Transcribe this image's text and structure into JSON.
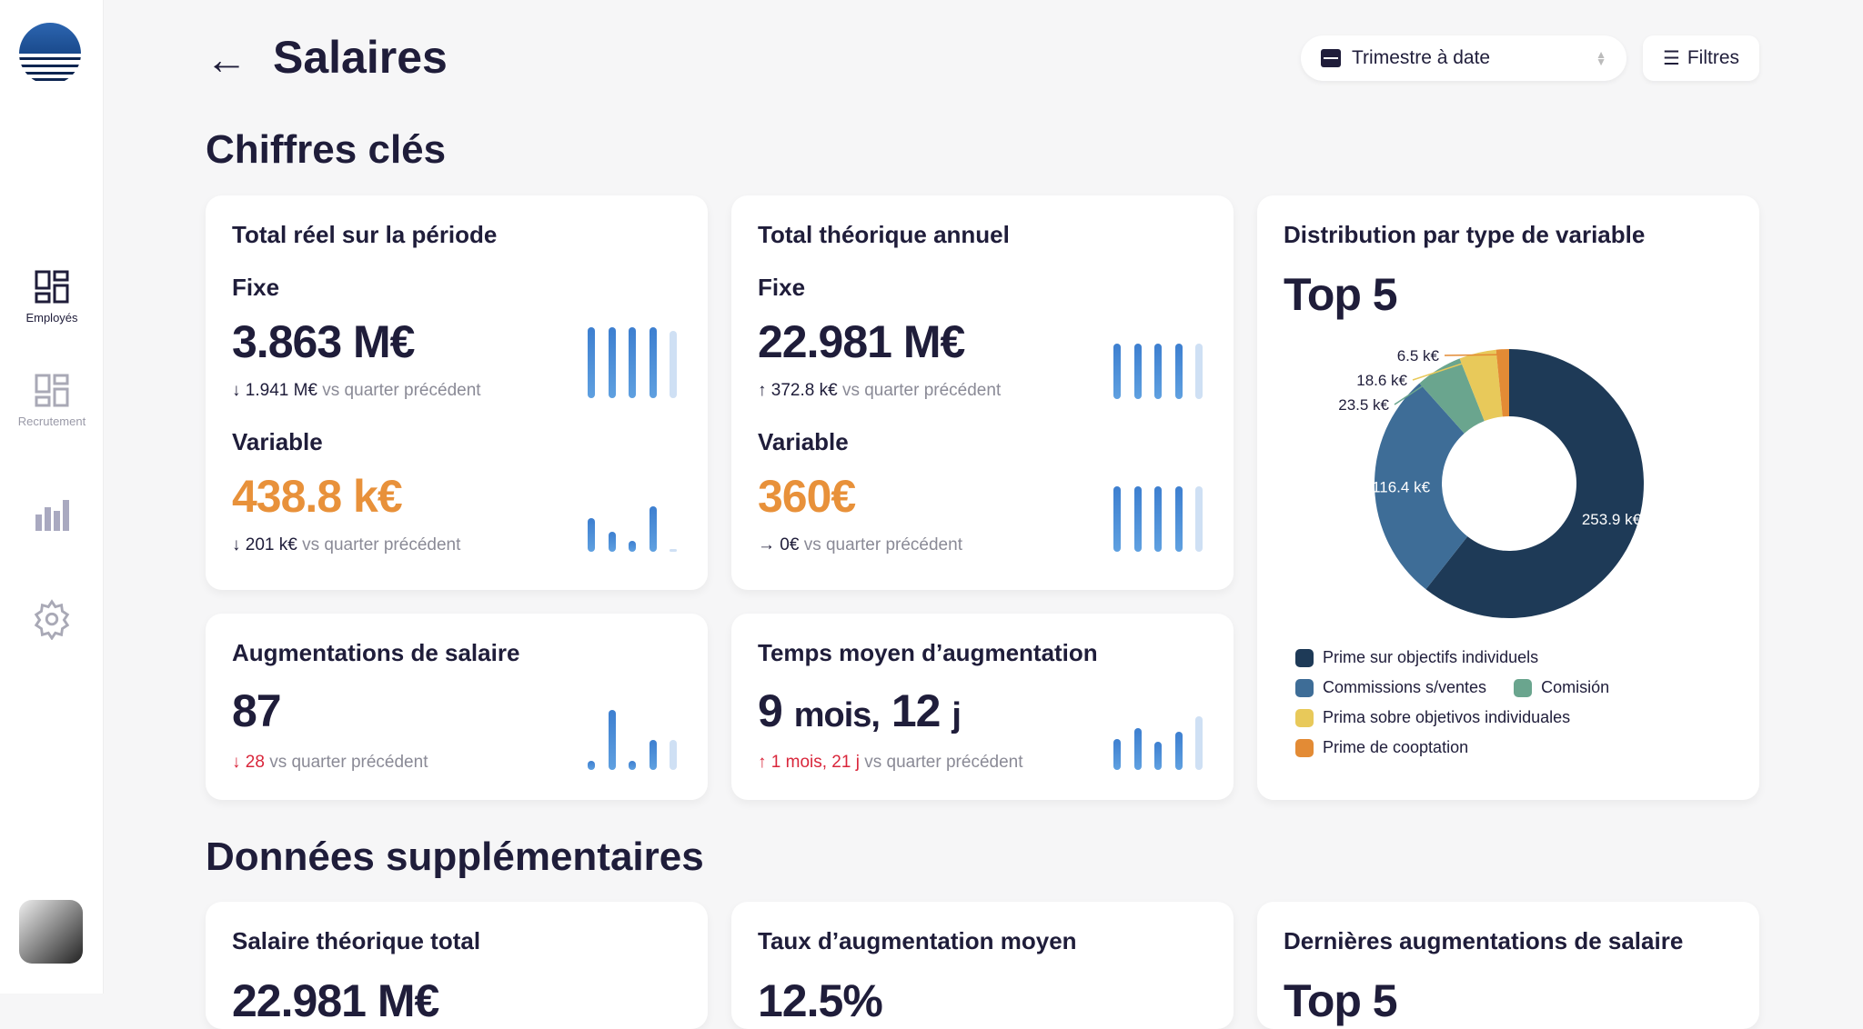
{
  "sidebar": {
    "items": [
      {
        "label": "Employés"
      },
      {
        "label": "Recrutement"
      }
    ]
  },
  "header": {
    "back": "←",
    "title": "Salaires",
    "period_select": "Trimestre à date",
    "filters": "Filtres"
  },
  "sections": {
    "key": "Chiffres clés",
    "extra": "Données supplémentaires"
  },
  "cards": {
    "total_reel": {
      "title": "Total réel sur la période",
      "fixe_label": "Fixe",
      "fixe_value": "3.863 M€",
      "fixe_delta": "↓ 1.941 M€",
      "variable_label": "Variable",
      "variable_value": "438.8 k€",
      "variable_delta": "↓ 201 k€",
      "vs": "vs quarter précédent",
      "fixe_bars": [
        1,
        1,
        1,
        1,
        0.95
      ],
      "variable_bars": [
        0.6,
        0.35,
        0.2,
        0.8,
        0.03
      ]
    },
    "total_theo": {
      "title": "Total théorique annuel",
      "fixe_label": "Fixe",
      "fixe_value": "22.981 M€",
      "fixe_delta": "↑ 372.8 k€",
      "variable_label": "Variable",
      "variable_value": "360€",
      "variable_delta": "→ 0€",
      "vs": "vs quarter précédent",
      "fixe_bars": [
        0.95,
        0.95,
        0.95,
        0.95,
        0.95
      ],
      "variable_bars": [
        1,
        1,
        1,
        1,
        1
      ]
    },
    "augmentations": {
      "title": "Augmentations de salaire",
      "value": "87",
      "delta": "↓ 28",
      "vs": "vs quarter précédent",
      "bars": [
        0.15,
        1,
        0.15,
        0.5,
        0.5
      ]
    },
    "temps": {
      "title": "Temps moyen d’augmentation",
      "value_a": "9",
      "unit_a": "mois,",
      "value_b": "12",
      "unit_b": "j",
      "delta": "↑ 1 mois, 21 j",
      "vs": "vs quarter précédent",
      "bars": [
        0.55,
        0.75,
        0.5,
        0.68,
        0.95
      ]
    },
    "distribution": {
      "title": "Distribution par type de variable",
      "subtitle": "Top 5"
    },
    "salaire_theo": {
      "title": "Salaire théorique total",
      "value": "22.981 M€"
    },
    "taux": {
      "title": "Taux d’augmentation moyen",
      "value": "12.5%"
    },
    "dernieres": {
      "title": "Dernières augmentations de salaire",
      "value": "Top 5"
    }
  },
  "chart_data": {
    "type": "pie",
    "variant": "donut",
    "title": "Distribution par type de variable",
    "subtitle": "Top 5",
    "categories": [
      "Prime sur objectifs individuels",
      "Commissions s/ventes",
      "Comisión",
      "Prima sobre objetivos individuales",
      "Prime de cooptation"
    ],
    "values": [
      253.9,
      116.4,
      23.5,
      18.6,
      6.5
    ],
    "labels": [
      "253.9 k€",
      "116.4 k€",
      "23.5 k€",
      "18.6 k€",
      "6.5 k€"
    ],
    "colors": [
      "#1e3a57",
      "#3e6d97",
      "#6aa58e",
      "#e8c95a",
      "#e38b35"
    ],
    "legend": "bottom"
  }
}
